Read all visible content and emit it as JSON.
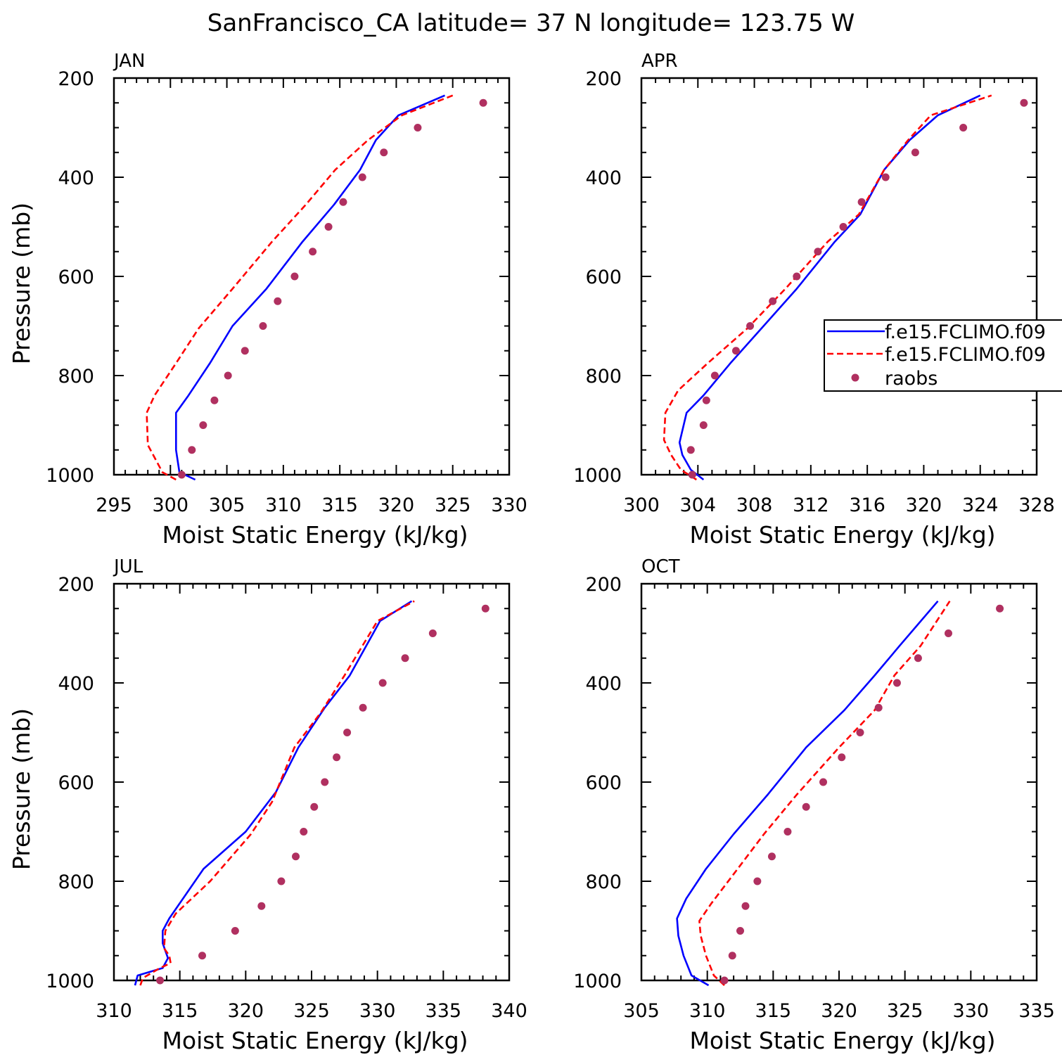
{
  "figure": {
    "title": "SanFrancisco_CA  latitude= 37 N longitude= 123.75 W"
  },
  "legend": {
    "entries": [
      {
        "label": "f.e15.FCLIMO.f09",
        "color": "#0000ff",
        "style": "solid"
      },
      {
        "label": "f.e15.FCLIMO.f09",
        "color": "#ff0000",
        "style": "dashed"
      },
      {
        "label": "raobs",
        "color": "#b03060",
        "style": "dot"
      }
    ]
  },
  "chart_data": [
    {
      "type": "line",
      "panel_label": "JAN",
      "xlabel": "Moist Static Energy (kJ/kg)",
      "ylabel": "Pressure (mb)",
      "xlim": [
        295,
        330
      ],
      "xticks": [
        295,
        300,
        305,
        310,
        315,
        320,
        325,
        330
      ],
      "xminor": 1,
      "ylim": [
        1000,
        200
      ],
      "yticks": [
        200,
        400,
        600,
        800,
        1000
      ],
      "yminor": 50,
      "series": [
        {
          "color": "#0000ff",
          "style": "solid",
          "x": [
            302.2,
            300.8,
            300.5,
            300.5,
            301.6,
            303.5,
            305.5,
            308.5,
            311.7,
            314.5,
            316.8,
            318.2,
            320.2,
            324.3
          ],
          "y": [
            1010,
            995,
            950,
            875,
            840,
            775,
            700,
            625,
            530,
            455,
            385,
            325,
            275,
            235
          ]
        },
        {
          "color": "#ff0000",
          "style": "dashed",
          "x": [
            300.5,
            299.3,
            298.0,
            297.9,
            298.6,
            300.5,
            302.5,
            305.5,
            309.0,
            312.0,
            314.6,
            317.5,
            320.5,
            325.0
          ],
          "y": [
            1010,
            995,
            940,
            875,
            840,
            775,
            705,
            625,
            530,
            455,
            385,
            325,
            275,
            235
          ]
        }
      ],
      "raobs": {
        "x": [
          301.0,
          301.9,
          302.9,
          303.9,
          305.1,
          306.6,
          308.2,
          309.5,
          311.0,
          312.6,
          314.0,
          315.3,
          317.0,
          318.9,
          321.9,
          327.7
        ],
        "y": [
          1000,
          950,
          900,
          850,
          800,
          750,
          700,
          650,
          600,
          550,
          500,
          450,
          400,
          350,
          300,
          250
        ]
      }
    },
    {
      "type": "line",
      "panel_label": "APR",
      "xlabel": "Moist Static Energy (kJ/kg)",
      "ylabel": "",
      "xlim": [
        300,
        328
      ],
      "xticks": [
        300,
        304,
        308,
        312,
        316,
        320,
        324,
        328
      ],
      "xminor": 1,
      "ylim": [
        1000,
        200
      ],
      "yticks": [
        200,
        400,
        600,
        800,
        1000
      ],
      "yminor": 50,
      "series": [
        {
          "color": "#0000ff",
          "style": "solid",
          "x": [
            304.4,
            303.5,
            302.9,
            302.7,
            303.2,
            304.4,
            306.3,
            308.5,
            311.0,
            313.7,
            315.5,
            317.2,
            319.0,
            321.0,
            324.0
          ],
          "y": [
            1010,
            990,
            960,
            935,
            875,
            840,
            775,
            705,
            625,
            530,
            475,
            385,
            325,
            275,
            235
          ]
        },
        {
          "color": "#ff0000",
          "style": "dashed",
          "x": [
            303.9,
            302.8,
            302.1,
            301.6,
            301.7,
            302.6,
            304.7,
            307.5,
            310.2,
            313.2,
            315.4,
            317.2,
            318.9,
            320.5,
            324.8
          ],
          "y": [
            1010,
            990,
            960,
            930,
            875,
            830,
            775,
            705,
            625,
            530,
            475,
            385,
            325,
            275,
            235
          ]
        }
      ],
      "raobs": {
        "x": [
          303.6,
          303.5,
          304.4,
          304.6,
          305.2,
          306.7,
          307.7,
          309.3,
          311.0,
          312.5,
          314.3,
          315.6,
          317.3,
          319.4,
          322.8,
          327.1
        ],
        "y": [
          1000,
          950,
          900,
          850,
          800,
          750,
          700,
          650,
          600,
          550,
          500,
          450,
          400,
          350,
          300,
          250
        ]
      }
    },
    {
      "type": "line",
      "panel_label": "JUL",
      "xlabel": "Moist Static Energy (kJ/kg)",
      "ylabel": "Pressure (mb)",
      "xlim": [
        310,
        340
      ],
      "xticks": [
        310,
        315,
        320,
        325,
        330,
        335,
        340
      ],
      "xminor": 1,
      "ylim": [
        1000,
        200
      ],
      "yticks": [
        200,
        400,
        600,
        800,
        1000
      ],
      "yminor": 50,
      "series": [
        {
          "color": "#0000ff",
          "style": "solid",
          "x": [
            311.6,
            311.8,
            313.7,
            314.1,
            313.7,
            313.7,
            314.2,
            316.8,
            320.0,
            322.3,
            324.0,
            326.0,
            327.9,
            330.2,
            332.6
          ],
          "y": [
            1010,
            990,
            975,
            955,
            925,
            900,
            875,
            775,
            700,
            620,
            530,
            450,
            385,
            275,
            235
          ]
        },
        {
          "color": "#ff0000",
          "style": "dashed",
          "x": [
            312.0,
            312.2,
            313.5,
            314.3,
            314.2,
            313.8,
            313.9,
            314.7,
            317.3,
            320.4,
            322.0,
            323.7,
            325.7,
            327.5,
            330.0,
            332.8
          ],
          "y": [
            1010,
            995,
            975,
            965,
            950,
            935,
            900,
            865,
            800,
            705,
            640,
            530,
            460,
            385,
            275,
            235
          ]
        }
      ],
      "raobs": {
        "x": [
          313.5,
          316.7,
          319.2,
          321.2,
          322.7,
          323.8,
          324.4,
          325.2,
          326.0,
          326.9,
          327.7,
          328.9,
          330.4,
          332.1,
          334.2,
          338.2
        ],
        "y": [
          1000,
          950,
          900,
          850,
          800,
          750,
          700,
          650,
          600,
          550,
          500,
          450,
          400,
          350,
          300,
          250
        ]
      }
    },
    {
      "type": "line",
      "panel_label": "OCT",
      "xlabel": "Moist Static Energy (kJ/kg)",
      "ylabel": "",
      "xlim": [
        305,
        335
      ],
      "xticks": [
        305,
        310,
        315,
        320,
        325,
        330,
        335
      ],
      "xminor": 1,
      "ylim": [
        1000,
        200
      ],
      "yticks": [
        200,
        400,
        600,
        800,
        1000
      ],
      "yminor": 50,
      "series": [
        {
          "color": "#0000ff",
          "style": "solid",
          "x": [
            310.1,
            308.8,
            308.2,
            307.8,
            307.7,
            308.4,
            309.9,
            312.0,
            314.6,
            317.5,
            320.4,
            322.7,
            324.6,
            327.5
          ],
          "y": [
            1010,
            990,
            950,
            910,
            875,
            835,
            775,
            705,
            625,
            530,
            455,
            385,
            325,
            235
          ]
        },
        {
          "color": "#ff0000",
          "style": "dashed",
          "x": [
            311.3,
            310.5,
            309.9,
            309.5,
            309.4,
            310.3,
            312.3,
            314.3,
            316.8,
            320.0,
            322.7,
            324.2,
            326.2,
            328.4
          ],
          "y": [
            1010,
            990,
            950,
            910,
            880,
            845,
            775,
            705,
            625,
            530,
            455,
            385,
            325,
            235
          ]
        }
      ],
      "raobs": {
        "x": [
          311.3,
          311.9,
          312.5,
          312.9,
          313.8,
          314.9,
          316.1,
          317.5,
          318.8,
          320.2,
          321.6,
          323.0,
          324.4,
          326.0,
          328.3,
          332.2
        ],
        "y": [
          1000,
          950,
          900,
          850,
          800,
          750,
          700,
          650,
          600,
          550,
          500,
          450,
          400,
          350,
          300,
          250
        ]
      }
    }
  ]
}
